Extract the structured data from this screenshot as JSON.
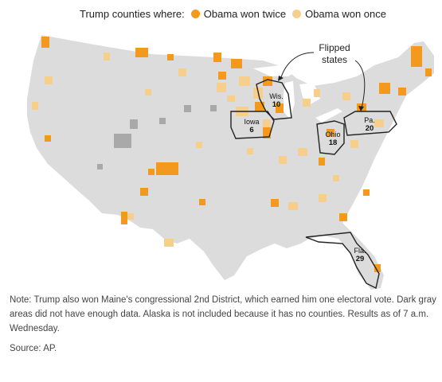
{
  "legend": {
    "intro": "Trump counties where:",
    "items": [
      {
        "label": "Obama won twice",
        "color": "#f39a1e"
      },
      {
        "label": "Obama won once",
        "color": "#f7cf8d"
      }
    ]
  },
  "callout": {
    "line1": "Flipped",
    "line2": "states"
  },
  "flipped_states": [
    {
      "name": "Wis.",
      "electoral_votes": "10"
    },
    {
      "name": "Iowa",
      "electoral_votes": "6"
    },
    {
      "name": "Ohio",
      "electoral_votes": "18"
    },
    {
      "name": "Pa.",
      "electoral_votes": "20"
    },
    {
      "name": "Fla.",
      "electoral_votes": "29"
    }
  ],
  "colors": {
    "land": "#dcdcdc",
    "no_data": "#a9a9a9",
    "obama_twice": "#f39a1e",
    "obama_once": "#f7cf8d",
    "outline": "#222222"
  },
  "note": "Note: Trump also won Maine's congressional 2nd District, which earned him one electoral vote. Dark gray areas did not have enough data. Alaska is not included because it has no counties. Results as of 7 a.m. Wednesday.",
  "source": "Source: AP."
}
